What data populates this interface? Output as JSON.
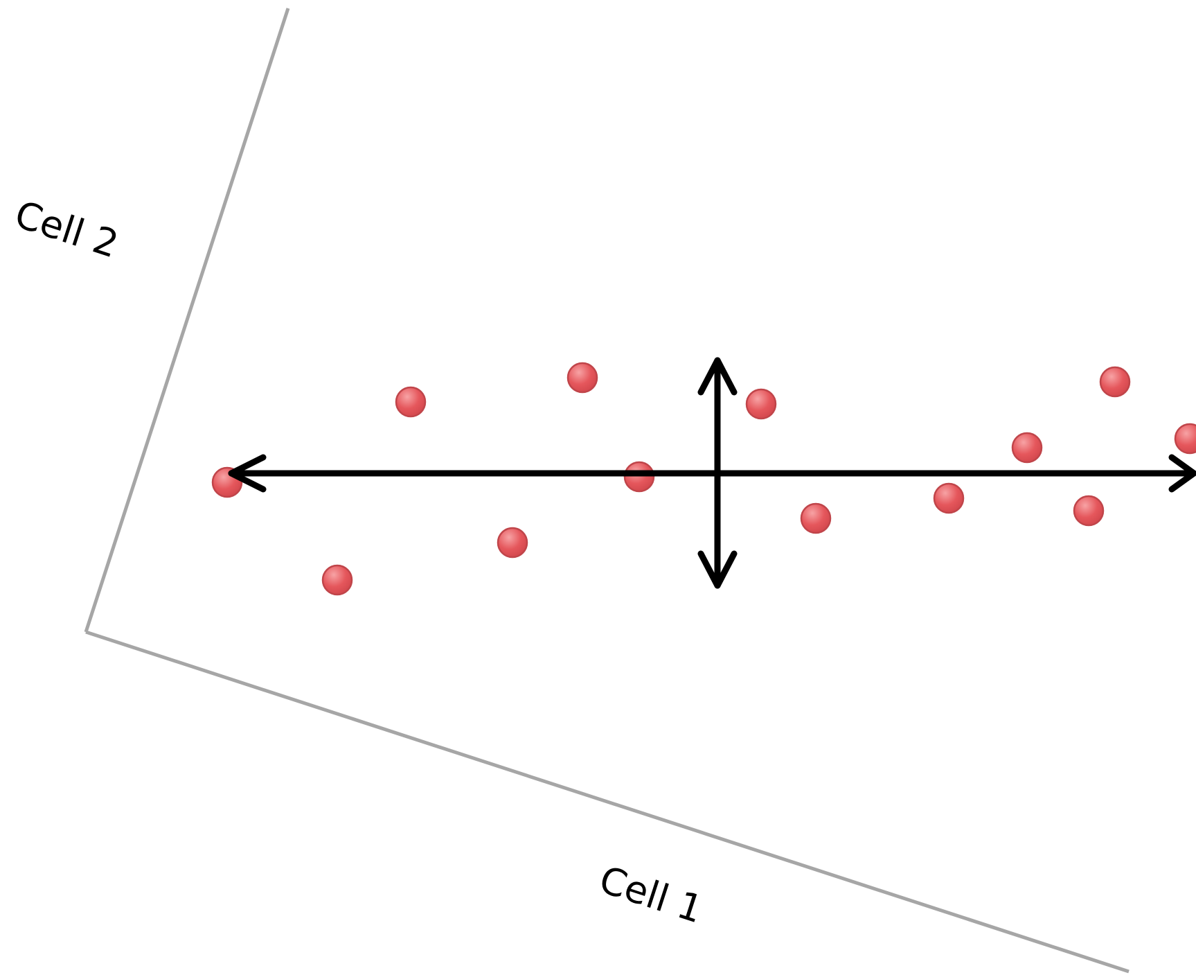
{
  "labels": {
    "cell_1": "Cell 1",
    "cell_2": "Cell 2"
  },
  "colors": {
    "point_fill": "#e5575c",
    "point_highlight": "#f7a3a5",
    "point_edge": "#c0454a",
    "axis": "#a6a6a6",
    "arrow": "#000000"
  },
  "icons": {
    "horizontal_arrow": "double-headed-arrow-horizontal",
    "vertical_arrow": "double-headed-arrow-vertical"
  }
}
